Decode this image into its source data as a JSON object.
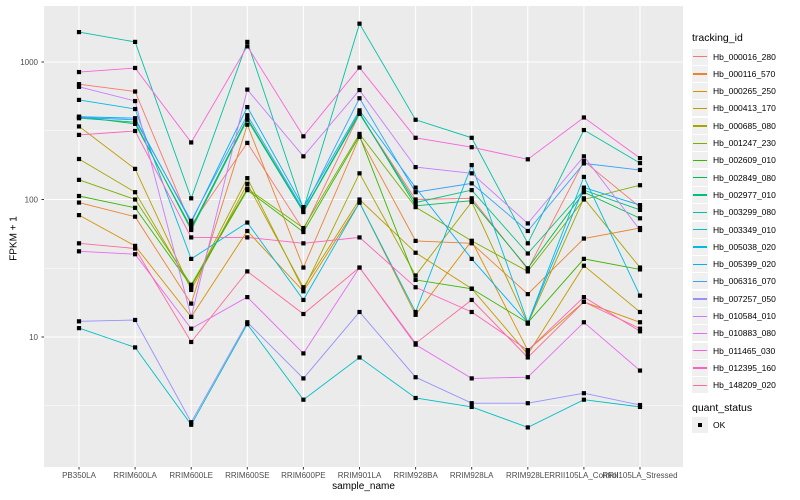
{
  "chart_data": {
    "type": "line",
    "xlabel": "sample_name",
    "ylabel": "FPKM + 1",
    "y_scale": "log10",
    "y_ticks": [
      10,
      100,
      1000
    ],
    "y_minor_ticks": [
      3.162,
      31.62,
      316.2
    ],
    "ylim": [
      1.1,
      2300
    ],
    "grid": "white-on-grey-panel",
    "panel_color": "#EBEBEB",
    "grid_color": "#FFFFFF",
    "point_color": "#000000",
    "categories": [
      "PB350LA",
      "RRIM600LA",
      "RRIM600LE",
      "RRIM600SE",
      "RRIM600PE",
      "RRIM901LA",
      "RRIM928BA",
      "RRIM928LA",
      "RRIM928LE",
      "RRII105LA_Control",
      "RRII105LA_Stressed"
    ],
    "legend": {
      "title": "tracking_id",
      "position": "right"
    },
    "quant_legend": {
      "title": "quant_status",
      "items": [
        "OK"
      ],
      "marker": "black-square"
    },
    "series": [
      {
        "name": "Hb_000016_280",
        "color": "#F8766D",
        "values": [
          690,
          610,
          65,
          258,
          60,
          420,
          100,
          102,
          31,
          190,
          88
        ]
      },
      {
        "name": "Hb_000116_570",
        "color": "#EA8331",
        "values": [
          95,
          75,
          17.5,
          350,
          32,
          285,
          50,
          48,
          20.5,
          52,
          62
        ]
      },
      {
        "name": "Hb_000265_250",
        "color": "#D89000",
        "values": [
          77,
          46,
          14,
          59,
          21.5,
          95,
          14.5,
          50,
          8,
          18,
          12.8
        ]
      },
      {
        "name": "Hb_000413_170",
        "color": "#C09B00",
        "values": [
          340,
          167,
          22,
          130,
          23,
          100,
          41,
          22.5,
          7.5,
          33,
          15.2
        ]
      },
      {
        "name": "Hb_000685_080",
        "color": "#A3A500",
        "values": [
          197,
          113,
          23,
          143,
          22,
          155,
          28,
          96,
          12.5,
          102,
          32
        ]
      },
      {
        "name": "Hb_001247_230",
        "color": "#7CAE00",
        "values": [
          139,
          100,
          24,
          120,
          62,
          300,
          88,
          50,
          30,
          100,
          127
        ]
      },
      {
        "name": "Hb_002609_010",
        "color": "#39B600",
        "values": [
          106,
          87,
          23.5,
          117,
          58,
          290,
          26,
          22.4,
          12.7,
          37,
          31
        ]
      },
      {
        "name": "Hb_002849_080",
        "color": "#00BB4E",
        "values": [
          400,
          355,
          62,
          390,
          82,
          430,
          90,
          98,
          31.6,
          113,
          73
        ]
      },
      {
        "name": "Hb_002977_010",
        "color": "#00BF7D",
        "values": [
          390,
          365,
          60,
          380,
          81,
          420,
          95,
          117,
          40.5,
          117,
          84
        ]
      },
      {
        "name": "Hb_003299_080",
        "color": "#00C1A3",
        "values": [
          1650,
          1400,
          102,
          1400,
          85,
          1900,
          380,
          281,
          48,
          320,
          184
        ]
      },
      {
        "name": "Hb_003349_010",
        "color": "#00BFC4",
        "values": [
          11.6,
          8.4,
          2.3,
          12.4,
          3.5,
          7.1,
          3.6,
          3.1,
          2.2,
          3.5,
          3.1
        ]
      },
      {
        "name": "Hb_005038_020",
        "color": "#00BAE0",
        "values": [
          530,
          455,
          37,
          68,
          18.6,
          95,
          15.2,
          178,
          12.7,
          146,
          20
        ]
      },
      {
        "name": "Hb_005399_020",
        "color": "#00B0F6",
        "values": [
          400,
          390,
          68,
          470,
          88,
          445,
          122,
          37,
          12.7,
          122,
          91
        ]
      },
      {
        "name": "Hb_006316_070",
        "color": "#35A2FF",
        "values": [
          395,
          380,
          70,
          410,
          84,
          545,
          113,
          131,
          59,
          183,
          164
        ]
      },
      {
        "name": "Hb_007257_050",
        "color": "#9590FF",
        "values": [
          13,
          13.3,
          2.4,
          12.8,
          5.0,
          15.2,
          5.1,
          3.3,
          3.3,
          3.9,
          3.2
        ]
      },
      {
        "name": "Hb_010584_010",
        "color": "#C77CFF",
        "values": [
          660,
          520,
          14,
          630,
          206,
          625,
          172,
          155,
          67,
          206,
          60
        ]
      },
      {
        "name": "Hb_010883_080",
        "color": "#E76BF3",
        "values": [
          42,
          40,
          11.5,
          19.5,
          7.6,
          32,
          8.8,
          5.0,
          5.1,
          12.8,
          5.7
        ]
      },
      {
        "name": "Hb_011465_030",
        "color": "#FA62DB",
        "values": [
          845,
          905,
          260,
          1300,
          288,
          910,
          281,
          240,
          196,
          395,
          200
        ]
      },
      {
        "name": "Hb_012395_160",
        "color": "#FF62BC",
        "values": [
          295,
          315,
          53,
          53,
          48,
          53,
          23,
          15.2,
          8,
          19.5,
          11
        ]
      },
      {
        "name": "Hb_148209_020",
        "color": "#FF6A98",
        "values": [
          48,
          44,
          9.2,
          30,
          14.7,
          32,
          9.0,
          18.6,
          7.1,
          18,
          11.5
        ]
      }
    ]
  }
}
